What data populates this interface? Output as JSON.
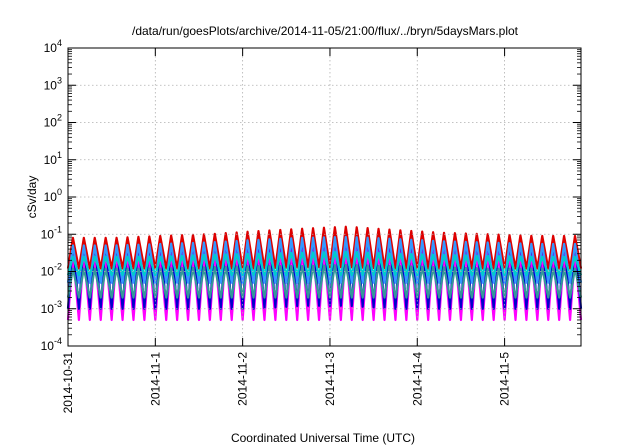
{
  "chart_data": {
    "type": "line",
    "title": "/data/run/goesPlots/archive/2014-11-05/21:00/flux/../bryn/5daysMars.plot",
    "xlabel": "Coordinated Universal Time (UTC)",
    "ylabel": "cSv/day",
    "yscale": "log",
    "ylim": [
      0.0001,
      10000
    ],
    "y_ticks": [
      {
        "value": 0.0001,
        "base": "10",
        "exp": "-4"
      },
      {
        "value": 0.001,
        "base": "10",
        "exp": "-3"
      },
      {
        "value": 0.01,
        "base": "10",
        "exp": "-2"
      },
      {
        "value": 0.1,
        "base": "10",
        "exp": "-1"
      },
      {
        "value": 1,
        "base": "10",
        "exp": "0"
      },
      {
        "value": 10,
        "base": "10",
        "exp": "1"
      },
      {
        "value": 100,
        "base": "10",
        "exp": "2"
      },
      {
        "value": 1000,
        "base": "10",
        "exp": "3"
      },
      {
        "value": 10000,
        "base": "10",
        "exp": "4"
      }
    ],
    "x_ticks": [
      "2014-10-31",
      "2014-11-1",
      "2014-11-2",
      "2014-11-3",
      "2014-11-4",
      "2014-11-5"
    ],
    "xlim": [
      "2014-10-31T00:00",
      "2014-11-05T21:00"
    ],
    "grid": true,
    "legend": "none",
    "oscillation_period_hours": 3,
    "series": [
      {
        "color": "#ff00ff",
        "peak_values": [
          0.03,
          0.03,
          0.03,
          0.035,
          0.035,
          0.04,
          0.04,
          0.04,
          0.035,
          0.035,
          0.03,
          0.03
        ],
        "trough_values": [
          0.0005,
          0.0005,
          0.0005,
          0.0005,
          0.0005,
          0.0005,
          0.0005,
          0.0005,
          0.0005,
          0.0005,
          0.0005,
          0.0005
        ]
      },
      {
        "color": "#0000cc",
        "peak_values": [
          0.07,
          0.07,
          0.08,
          0.09,
          0.1,
          0.11,
          0.12,
          0.11,
          0.1,
          0.09,
          0.08,
          0.08
        ],
        "trough_values": [
          0.001,
          0.001,
          0.001,
          0.001,
          0.001,
          0.0012,
          0.0012,
          0.001,
          0.001,
          0.001,
          0.001,
          0.001
        ]
      },
      {
        "color": "#dd0000",
        "peak_values": [
          0.08,
          0.08,
          0.09,
          0.1,
          0.12,
          0.14,
          0.16,
          0.13,
          0.11,
          0.1,
          0.09,
          0.09
        ],
        "trough_values": [
          0.012,
          0.012,
          0.012,
          0.012,
          0.012,
          0.013,
          0.013,
          0.012,
          0.012,
          0.012,
          0.012,
          0.012
        ]
      },
      {
        "color": "#3399ff",
        "peak_values": [
          0.05,
          0.05,
          0.055,
          0.06,
          0.07,
          0.08,
          0.085,
          0.075,
          0.065,
          0.06,
          0.055,
          0.055
        ],
        "trough_values": [
          0.005,
          0.005,
          0.005,
          0.005,
          0.005,
          0.005,
          0.005,
          0.005,
          0.005,
          0.005,
          0.005,
          0.005
        ]
      },
      {
        "color": "#00cccc",
        "peak_values": [
          0.025,
          0.025,
          0.025,
          0.028,
          0.03,
          0.032,
          0.034,
          0.03,
          0.028,
          0.026,
          0.025,
          0.025
        ],
        "trough_values": [
          0.008,
          0.008,
          0.008,
          0.008,
          0.008,
          0.008,
          0.008,
          0.008,
          0.008,
          0.008,
          0.008,
          0.008
        ]
      },
      {
        "color": "#339999",
        "peak_values": [
          0.012,
          0.012,
          0.012,
          0.013,
          0.014,
          0.014,
          0.015,
          0.014,
          0.013,
          0.012,
          0.012,
          0.012
        ],
        "trough_values": [
          0.002,
          0.002,
          0.002,
          0.002,
          0.002,
          0.002,
          0.002,
          0.002,
          0.002,
          0.002,
          0.002,
          0.002
        ]
      }
    ]
  }
}
